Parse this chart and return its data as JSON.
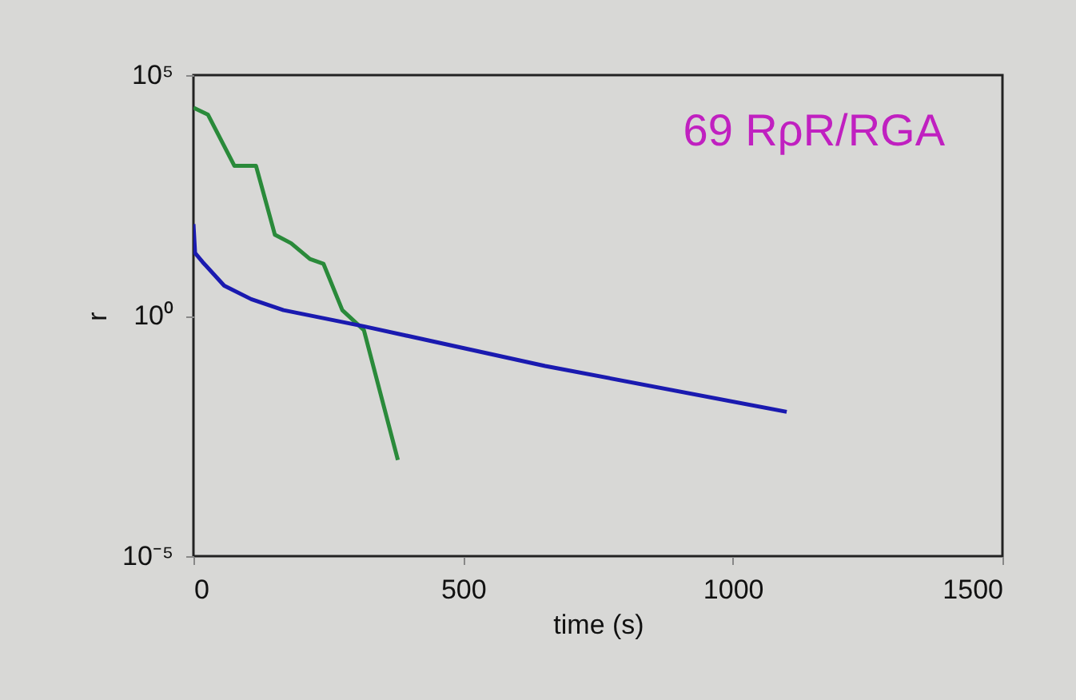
{
  "chart_data": {
    "type": "line",
    "xlabel": "time (s)",
    "ylabel": "r",
    "log": "y",
    "grid": false,
    "marker": "none",
    "line_style": "solid",
    "annotations": [
      "69 RρR/RGA"
    ],
    "xlim": [
      0,
      1500
    ],
    "xticks": [
      0,
      500,
      1000,
      1500
    ],
    "ylim": [
      1e-05,
      100000
    ],
    "yticks": [
      {
        "value": 1e-05,
        "label": "10⁻⁵"
      },
      {
        "value": 1,
        "label": "10⁰"
      },
      {
        "value": 100000,
        "label": "10⁵"
      }
    ],
    "series": [
      {
        "color": "#2a8a3a",
        "x": [
          0,
          27,
          76,
          116,
          151,
          181,
          216,
          241,
          276,
          316,
          379
        ],
        "values": [
          21000,
          15000,
          1300,
          1300,
          48,
          32,
          15,
          12,
          1.3,
          0.5,
          0.001
        ]
      },
      {
        "color": "#1a1ab0",
        "x": [
          0,
          3,
          17,
          57,
          107,
          167,
          316,
          652,
          1100
        ],
        "values": [
          80,
          20,
          13,
          4.2,
          2.2,
          1.3,
          0.6,
          0.09,
          0.01
        ]
      }
    ]
  }
}
